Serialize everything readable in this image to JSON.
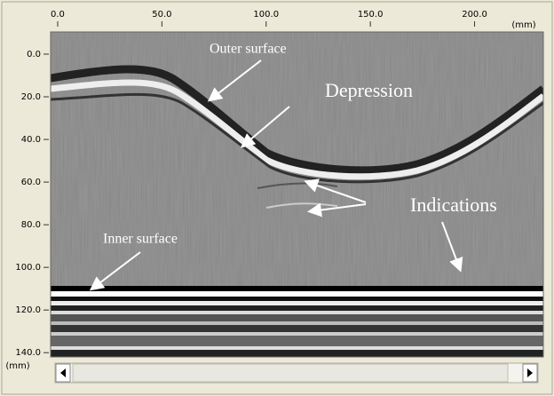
{
  "x_axis": {
    "unit": "(mm)",
    "lim": [
      -3.4,
      233
    ],
    "ticks": [
      {
        "value": 0,
        "label": "0.0"
      },
      {
        "value": 50,
        "label": "50.0"
      },
      {
        "value": 100,
        "label": "100.0"
      },
      {
        "value": 150,
        "label": "150.0"
      },
      {
        "value": 200,
        "label": "200.0"
      }
    ]
  },
  "y_axis": {
    "unit": "(mm)",
    "lim": [
      -10.4,
      142
    ],
    "ticks": [
      {
        "value": 0,
        "label": "0.0"
      },
      {
        "value": 20,
        "label": "20.0"
      },
      {
        "value": 40,
        "label": "40.0"
      },
      {
        "value": 60,
        "label": "60.0"
      },
      {
        "value": 80,
        "label": "80.0"
      },
      {
        "value": 100,
        "label": "100.0"
      },
      {
        "value": 120,
        "label": "120.0"
      },
      {
        "value": 140,
        "label": "140.0"
      }
    ]
  },
  "annotations": {
    "outer": "Outer surface",
    "depression": "Depression",
    "indications": "Indications",
    "inner": "Inner surface"
  }
}
